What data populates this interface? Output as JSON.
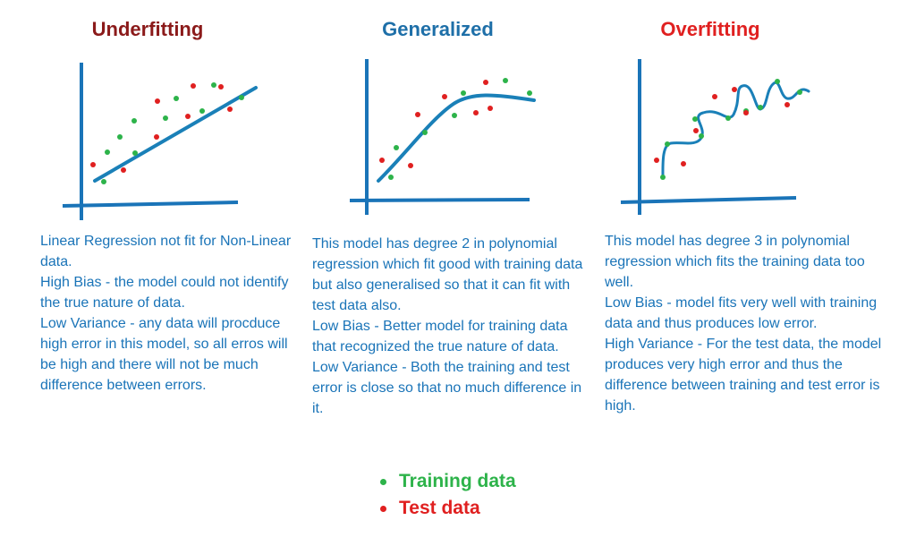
{
  "colors": {
    "underfitting": "#8b1a1a",
    "generalized": "#1e6fa8",
    "overfitting": "#e02020",
    "text": "#1a74b8",
    "axis": "#1a74b8",
    "curve": "#1a80b8",
    "training": "#2db34a",
    "test": "#e02020"
  },
  "panels": [
    {
      "title": "Underfitting",
      "description": "Linear Regression not fit for Non-Linear data.\nHigh Bias - the model could not identify the true nature of data.\nLow Variance - any data will procduce high error in this model, so all erros will be high and there will not be much difference between errors."
    },
    {
      "title": "Generalized",
      "description": "This model has degree 2 in polynomial regression which fit good with training data but also generalised so that it can fit with test data also.\nLow Bias - Better model for training data that recognized the true nature of data.\nLow Variance - Both the training and test error is close so that no much difference in it."
    },
    {
      "title": "Overfitting",
      "description": "This model has degree 3 in polynomial regression which fits the training data too well.\nLow Bias - model fits very well with training data and thus produces low error.\nHigh Variance - For the test data, the model produces very high error and thus the difference between training and test error is high."
    }
  ],
  "legend": {
    "training_label": "Training data",
    "test_label": "Test data"
  }
}
